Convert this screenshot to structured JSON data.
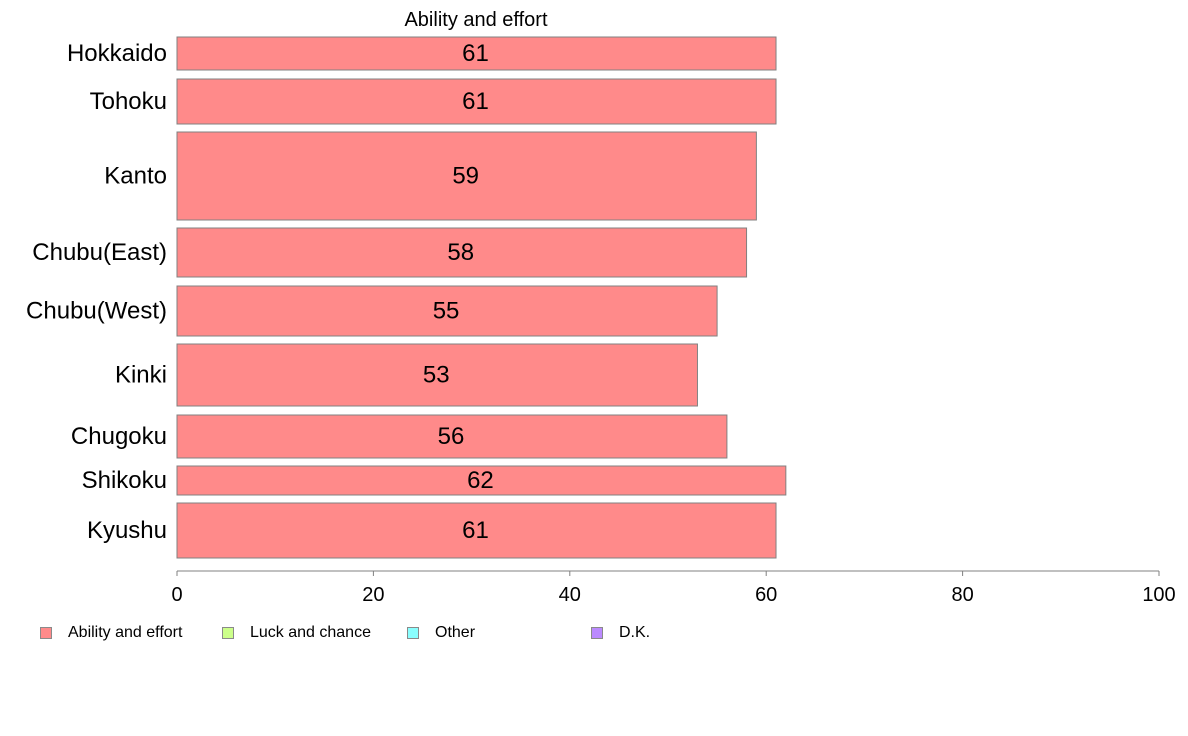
{
  "chart_data": {
    "type": "bar",
    "orientation": "horizontal",
    "title": "Ability and effort",
    "categories": [
      "Hokkaido",
      "Tohoku",
      "Kanto",
      "Chubu(East)",
      "Chubu(West)",
      "Kinki",
      "Chugoku",
      "Shikoku",
      "Kyushu"
    ],
    "values": [
      61,
      61,
      59,
      58,
      55,
      53,
      56,
      62,
      61
    ],
    "data_labels": [
      "61",
      "61",
      "59",
      "58",
      "55",
      "53",
      "56",
      "62",
      "61"
    ],
    "xlim": [
      0,
      100
    ],
    "x_ticks": [
      0,
      20,
      40,
      60,
      80,
      100
    ],
    "x_tick_labels": [
      "0",
      "20",
      "40",
      "60",
      "80",
      "100"
    ],
    "bar_color": "#ff8a8a",
    "grid": false,
    "legend_position": "bottom-left"
  },
  "legend": [
    {
      "label": "Ability and effort",
      "color": "#ff8a8a"
    },
    {
      "label": "Luck and chance",
      "color": "#ccff8a"
    },
    {
      "label": "Other",
      "color": "#8affff"
    },
    {
      "label": "D.K.",
      "color": "#bb8aff"
    }
  ]
}
